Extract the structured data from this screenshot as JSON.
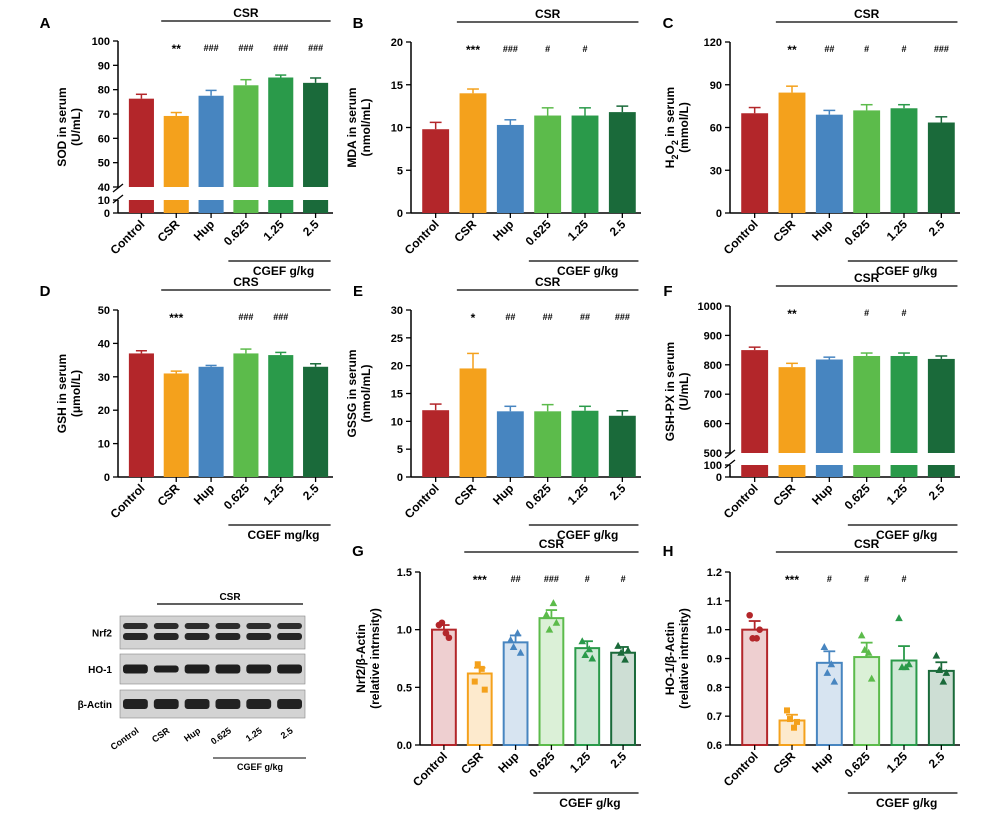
{
  "colors": {
    "Control": "#b3262a",
    "CSR": "#f4a11c",
    "Hup": "#4785c0",
    "0.625": "#5cbb4b",
    "1.25": "#2a9a4a",
    "2.5": "#1a6a3a"
  },
  "blot": {
    "group_label": "CSR",
    "rows": [
      "Nrf2",
      "HO-1",
      "β-Actin"
    ],
    "lanes": [
      "Control",
      "CSR",
      "Hup",
      "0.625",
      "1.25",
      "2.5"
    ],
    "cgef_label": "CGEF g/kg"
  },
  "chart_data": [
    {
      "panel": "A",
      "type": "bar",
      "broken_axis": true,
      "group_label": "CSR",
      "cgef_label": "CGEF g/kg",
      "categories": [
        "Control",
        "CSR",
        "Hup",
        "0.625",
        "1.25",
        "2.5"
      ],
      "values": [
        76.3,
        69.2,
        77.5,
        81.8,
        85.0,
        82.8
      ],
      "errors": [
        1.8,
        1.4,
        2.2,
        2.3,
        1.0,
        2.0
      ],
      "ylabel_lines": [
        "SOD in serum",
        "(U/mL)"
      ],
      "upper_ticks": [
        "100",
        "90",
        "80",
        "70",
        "60",
        "50",
        "40"
      ],
      "lower_ticks": [
        "10",
        "0"
      ],
      "ylim": [
        40,
        100
      ],
      "sig": [
        "",
        "**",
        "###",
        "###",
        "###",
        "###"
      ]
    },
    {
      "panel": "B",
      "type": "bar",
      "group_label": "CSR",
      "cgef_label": "CGEF g/kg",
      "categories": [
        "Control",
        "CSR",
        "Hup",
        "0.625",
        "1.25",
        "2.5"
      ],
      "values": [
        9.8,
        14.0,
        10.3,
        11.4,
        11.4,
        11.8
      ],
      "errors": [
        0.8,
        0.5,
        0.6,
        0.9,
        0.9,
        0.7
      ],
      "ylabel_lines": [
        "MDA in serum",
        "(nmol/mL)"
      ],
      "yticks": [
        "0",
        "5",
        "10",
        "15",
        "20"
      ],
      "ylim": [
        0,
        20
      ],
      "sig": [
        "",
        "***",
        "###",
        "#",
        "#",
        ""
      ]
    },
    {
      "panel": "C",
      "type": "bar",
      "group_label": "CSR",
      "cgef_label": "CGEF g/kg",
      "categories": [
        "Control",
        "CSR",
        "Hup",
        "0.625",
        "1.25",
        "2.5"
      ],
      "values": [
        70.0,
        84.5,
        69.0,
        72.0,
        73.5,
        63.5
      ],
      "errors": [
        4.0,
        4.5,
        3.0,
        4.0,
        2.5,
        4.0
      ],
      "ylabel_sub": [
        "H",
        "2",
        "O",
        "2",
        " in serum"
      ],
      "ylabel_line2": "(mmol/L)",
      "yticks": [
        "0",
        "30",
        "60",
        "90",
        "120"
      ],
      "ylim": [
        0,
        120
      ],
      "sig": [
        "",
        "**",
        "##",
        "#",
        "#",
        "###"
      ]
    },
    {
      "panel": "D",
      "type": "bar",
      "group_label": "CRS",
      "cgef_label": "CGEF mg/kg",
      "categories": [
        "Control",
        "CSR",
        "Hup",
        "0.625",
        "1.25",
        "2.5"
      ],
      "values": [
        37.0,
        31.0,
        33.0,
        37.0,
        36.5,
        33.0
      ],
      "errors": [
        0.8,
        0.7,
        0.4,
        1.3,
        0.8,
        0.9
      ],
      "ylabel_lines": [
        "GSH in serum",
        "(μmol/L)"
      ],
      "yticks": [
        "0",
        "10",
        "20",
        "30",
        "40",
        "50"
      ],
      "ylim": [
        0,
        50
      ],
      "sig": [
        "",
        "***",
        "",
        "###",
        "###",
        ""
      ]
    },
    {
      "panel": "E",
      "type": "bar",
      "group_label": "CSR",
      "cgef_label": "CGEF g/kg",
      "categories": [
        "Control",
        "CSR",
        "Hup",
        "0.625",
        "1.25",
        "2.5"
      ],
      "values": [
        12.0,
        19.5,
        11.8,
        11.8,
        11.9,
        11.0
      ],
      "errors": [
        1.1,
        2.7,
        0.9,
        1.2,
        0.8,
        0.9
      ],
      "ylabel_lines": [
        "GSSG in serum",
        "(nmol/mL)"
      ],
      "yticks": [
        "0",
        "5",
        "10",
        "15",
        "20",
        "25",
        "30"
      ],
      "ylim": [
        0,
        30
      ],
      "sig": [
        "",
        "*",
        "##",
        "##",
        "##",
        "###"
      ]
    },
    {
      "panel": "F",
      "type": "bar",
      "broken_axis": true,
      "group_label": "CSR",
      "cgef_label": "CGEF g/kg",
      "categories": [
        "Control",
        "CSR",
        "Hup",
        "0.625",
        "1.25",
        "2.5"
      ],
      "values": [
        850,
        792,
        818,
        830,
        830,
        820
      ],
      "errors": [
        10,
        13,
        8,
        10,
        10,
        10
      ],
      "ylabel_lines": [
        "GSH-PX in serum",
        "(U/mL)"
      ],
      "upper_ticks": [
        "1000",
        "900",
        "800",
        "700",
        "600",
        "500"
      ],
      "lower_ticks": [
        "100",
        "0"
      ],
      "ylim": [
        500,
        1000
      ],
      "sig": [
        "",
        "**",
        "",
        "#",
        "#",
        ""
      ]
    },
    {
      "panel": "G",
      "type": "bar",
      "style": "scatter-bar",
      "group_label": "CSR",
      "cgef_label": "CGEF g/kg",
      "categories": [
        "Control",
        "CSR",
        "Hup",
        "0.625",
        "1.25",
        "2.5"
      ],
      "values": [
        1.0,
        0.62,
        0.89,
        1.1,
        0.84,
        0.8
      ],
      "errors": [
        0.04,
        0.05,
        0.06,
        0.07,
        0.06,
        0.05
      ],
      "points": [
        [
          1.04,
          0.97,
          1.06,
          0.93
        ],
        [
          0.55,
          0.66,
          0.7,
          0.48
        ],
        [
          0.91,
          0.97,
          0.85,
          0.8
        ],
        [
          1.13,
          1.23,
          1.0,
          1.06
        ],
        [
          0.9,
          0.83,
          0.78,
          0.75
        ],
        [
          0.86,
          0.74,
          0.8,
          0.82
        ]
      ],
      "ylabel_lines": [
        "Nrf2/β-Actin",
        "(relative intrnsity)"
      ],
      "yticks": [
        "0.0",
        "0.5",
        "1.0",
        "1.5"
      ],
      "ylim": [
        0,
        1.5
      ],
      "sig": [
        "",
        "***",
        "##",
        "###",
        "#",
        "#"
      ]
    },
    {
      "panel": "H",
      "type": "bar",
      "style": "scatter-bar",
      "group_label": "CSR",
      "cgef_label": "CGEF g/kg",
      "categories": [
        "Control",
        "CSR",
        "Hup",
        "0.625",
        "1.25",
        "2.5"
      ],
      "values": [
        1.0,
        0.685,
        0.885,
        0.905,
        0.893,
        0.857
      ],
      "errors": [
        0.03,
        0.02,
        0.04,
        0.05,
        0.05,
        0.03
      ],
      "points": [
        [
          1.05,
          0.97,
          0.97,
          1.0
        ],
        [
          0.72,
          0.66,
          0.69,
          0.68
        ],
        [
          0.94,
          0.88,
          0.85,
          0.82
        ],
        [
          0.98,
          0.92,
          0.93,
          0.83
        ],
        [
          1.04,
          0.87,
          0.87,
          0.88
        ],
        [
          0.91,
          0.82,
          0.86,
          0.85
        ]
      ],
      "ylabel_lines": [
        "HO-1/β-Actin",
        "(relative intrnsity)"
      ],
      "yticks": [
        "0.6",
        "0.7",
        "0.8",
        "0.9",
        "1.0",
        "1.1",
        "1.2"
      ],
      "ylim": [
        0.6,
        1.2
      ],
      "sig": [
        "",
        "***",
        "#",
        "#",
        "#",
        ""
      ]
    }
  ]
}
